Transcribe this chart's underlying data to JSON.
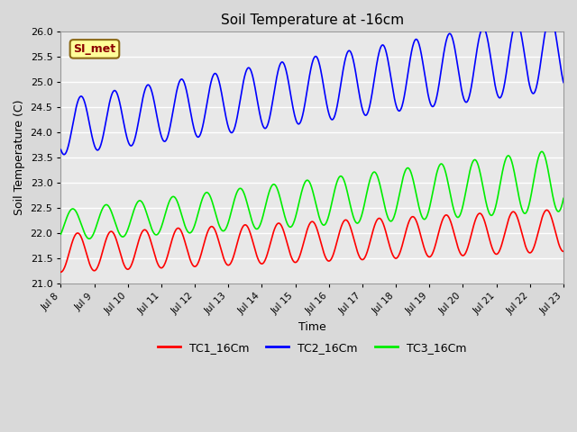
{
  "title": "Soil Temperature at -16cm",
  "xlabel": "Time",
  "ylabel": "Soil Temperature (C)",
  "ylim": [
    21.0,
    26.0
  ],
  "yticks": [
    21.0,
    21.5,
    22.0,
    22.5,
    23.0,
    23.5,
    24.0,
    24.5,
    25.0,
    25.5,
    26.0
  ],
  "xtick_labels": [
    "Jul 8",
    "Jul 9",
    "Jul 10",
    "Jul 11",
    "Jul 12",
    "Jul 13",
    "Jul 14",
    "Jul 15",
    "Jul 16",
    "Jul 17",
    "Jul 18",
    "Jul 19",
    "Jul 20",
    "Jul 21",
    "Jul 22",
    "Jul 23"
  ],
  "background_color": "#d9d9d9",
  "plot_bg_color": "#e8e8e8",
  "grid_color": "#ffffff",
  "annotation_text": "SI_met",
  "annotation_bg": "#ffff99",
  "annotation_border": "#8b6914",
  "tc1_color": "#ff0000",
  "tc2_color": "#0000ff",
  "tc3_color": "#00ee00",
  "n_days": 15,
  "n_points_per_day": 96,
  "tc1_base": 21.6,
  "tc1_trend": 0.03,
  "tc1_amp_early": 0.38,
  "tc1_amp_late": 0.42,
  "tc1_phase": -0.5,
  "tc2_base": 24.1,
  "tc2_trend": 0.1,
  "tc2_amp_early": 0.55,
  "tc2_amp_late": 0.75,
  "tc2_phase": -0.7,
  "tc3_base": 22.15,
  "tc3_trend": 0.06,
  "tc3_amp_early": 0.3,
  "tc3_amp_late": 0.62,
  "tc3_phase": -0.2
}
